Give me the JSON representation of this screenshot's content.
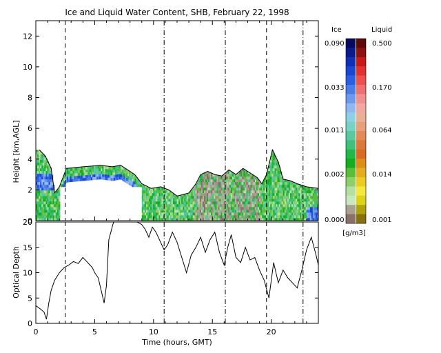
{
  "chart_data": [
    {
      "type": "heatmap",
      "title": "Ice and Liquid Water Content, SHB, February 22, 1998",
      "ylabel": "Height [km,AGL]",
      "xlim": [
        0,
        24
      ],
      "ylim": [
        0,
        13
      ],
      "yticks": [
        0,
        2,
        4,
        6,
        8,
        10,
        12
      ],
      "colorbar": {
        "ice_label": "Ice",
        "liquid_label": "Liquid",
        "unit": "[g/m3]",
        "ice_ticks": [
          "0.090",
          "0.033",
          "0.011",
          "0.002",
          "0.000"
        ],
        "liquid_ticks": [
          "0.500",
          "0.170",
          "0.064",
          "0.014",
          "0.001"
        ],
        "ice_colors": [
          "#060a5e",
          "#0a1a8a",
          "#1030b4",
          "#1848d2",
          "#2a60e0",
          "#4a7ce6",
          "#6e98ea",
          "#90b8ee",
          "#8ed0e6",
          "#76d2c4",
          "#5cc8a0",
          "#40c07a",
          "#22b848",
          "#18ac20",
          "#5abe38",
          "#8ed06c",
          "#b4e0a4",
          "#c8e8c0",
          "#a8a090",
          "#8a7068"
        ],
        "liquid_colors": [
          "#5e0808",
          "#8e1010",
          "#c81818",
          "#e43030",
          "#ee5050",
          "#f07070",
          "#f09090",
          "#f0a8a0",
          "#e8b094",
          "#e6a07a",
          "#e48a58",
          "#dc7838",
          "#d86c20",
          "#dc8e16",
          "#e4ae18",
          "#eccc20",
          "#f4e838",
          "#dcd414",
          "#b0a20c",
          "#88700c"
        ]
      },
      "vertical_lines": [
        {
          "x": 2.5,
          "style": "dashed"
        },
        {
          "x": 10.9,
          "style": "dash-dot"
        },
        {
          "x": 16.1,
          "style": "dash-dot"
        },
        {
          "x": 19.6,
          "style": "dashed"
        },
        {
          "x": 22.7,
          "style": "dash-dot"
        }
      ],
      "cloud_top_km": [
        [
          0.3,
          4.6
        ],
        [
          0.8,
          4.2
        ],
        [
          1.3,
          3.4
        ],
        [
          1.6,
          1.8
        ],
        [
          2.0,
          2.2
        ],
        [
          2.6,
          3.4
        ],
        [
          4.0,
          3.5
        ],
        [
          5.5,
          3.6
        ],
        [
          6.5,
          3.5
        ],
        [
          7.2,
          3.6
        ],
        [
          7.8,
          3.3
        ],
        [
          8.4,
          3.0
        ],
        [
          9.0,
          2.4
        ],
        [
          9.8,
          2.1
        ],
        [
          10.6,
          2.2
        ],
        [
          11.3,
          2.0
        ],
        [
          12.0,
          1.6
        ],
        [
          13.0,
          1.8
        ],
        [
          13.6,
          2.4
        ],
        [
          14.0,
          3.0
        ],
        [
          14.6,
          3.2
        ],
        [
          15.2,
          3.0
        ],
        [
          15.8,
          2.9
        ],
        [
          16.4,
          3.3
        ],
        [
          17.0,
          3.0
        ],
        [
          17.6,
          3.4
        ],
        [
          18.2,
          3.1
        ],
        [
          18.8,
          2.8
        ],
        [
          19.2,
          2.4
        ],
        [
          19.6,
          3.0
        ],
        [
          20.1,
          4.6
        ],
        [
          20.6,
          3.8
        ],
        [
          21.0,
          2.7
        ],
        [
          21.6,
          2.6
        ],
        [
          22.2,
          2.4
        ],
        [
          23.0,
          2.2
        ],
        [
          24.0,
          2.1
        ]
      ],
      "gap_intervals_hours": [
        [
          2.1,
          9.0
        ]
      ]
    },
    {
      "type": "line",
      "xlabel": "Time (hours, GMT)",
      "ylabel": "Optical Depth",
      "xlim": [
        0,
        24
      ],
      "ylim": [
        0,
        20
      ],
      "xticks": [
        0,
        5,
        10,
        15,
        20
      ],
      "yticks": [
        0,
        5,
        10,
        15,
        20
      ],
      "x": [
        0.0,
        0.4,
        0.7,
        0.9,
        1.1,
        1.3,
        1.6,
        2.0,
        2.4,
        2.8,
        3.2,
        3.6,
        4.0,
        4.4,
        4.8,
        5.0,
        5.3,
        5.6,
        5.8,
        6.0,
        6.2,
        6.6,
        7.0,
        7.4,
        7.8,
        8.2,
        8.6,
        9.0,
        9.3,
        9.6,
        9.9,
        10.2,
        10.6,
        10.9,
        11.2,
        11.6,
        12.0,
        12.4,
        12.8,
        13.2,
        13.6,
        14.0,
        14.4,
        14.8,
        15.2,
        15.6,
        16.0,
        16.3,
        16.6,
        17.0,
        17.4,
        17.8,
        18.2,
        18.6,
        19.0,
        19.4,
        19.8,
        20.2,
        20.6,
        21.0,
        21.4,
        21.8,
        22.2,
        22.6,
        23.0,
        23.4,
        23.8,
        24.0
      ],
      "values": [
        3.5,
        2.8,
        2.2,
        0.8,
        4.0,
        6.5,
        8.5,
        10.0,
        11.0,
        11.5,
        12.2,
        11.8,
        13.0,
        12.0,
        11.0,
        10.0,
        9.0,
        6.0,
        4.0,
        7.5,
        16.5,
        20.0,
        20.0,
        20.0,
        20.0,
        20.0,
        20.0,
        19.5,
        18.5,
        17.0,
        19.0,
        18.0,
        16.0,
        14.5,
        15.5,
        18.0,
        16.0,
        13.0,
        10.0,
        13.5,
        15.0,
        17.0,
        14.0,
        16.5,
        18.0,
        14.0,
        11.5,
        15.0,
        17.5,
        13.0,
        12.0,
        15.0,
        12.5,
        13.0,
        10.5,
        8.5,
        5.0,
        12.0,
        8.0,
        10.5,
        9.0,
        8.0,
        7.0,
        10.5,
        14.5,
        17.0,
        13.5,
        11.5
      ]
    }
  ]
}
